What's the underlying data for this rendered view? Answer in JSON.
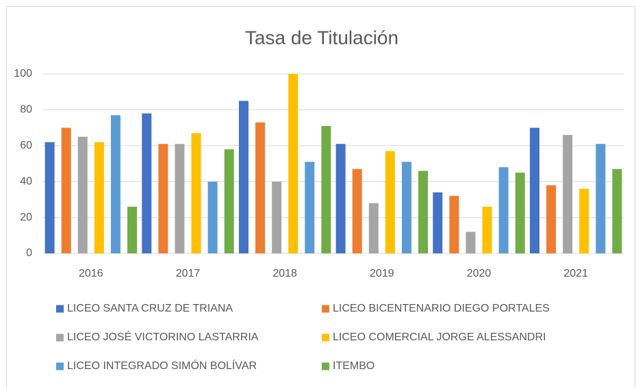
{
  "chart_data": {
    "type": "bar",
    "title": "Tasa de Titulación",
    "categories": [
      "2016",
      "2017",
      "2018",
      "2019",
      "2020",
      "2021"
    ],
    "series": [
      {
        "name": "LICEO SANTA CRUZ DE TRIANA",
        "color": "#4472c4",
        "values": [
          62,
          78,
          85,
          61,
          34,
          70
        ]
      },
      {
        "name": "LICEO BICENTENARIO DIEGO PORTALES",
        "color": "#ed7d31",
        "values": [
          70,
          61,
          73,
          47,
          32,
          38
        ]
      },
      {
        "name": "LICEO JOSÉ VICTORINO LASTARRIA",
        "color": "#a5a5a5",
        "values": [
          65,
          61,
          40,
          28,
          12,
          66
        ]
      },
      {
        "name": "LICEO COMERCIAL JORGE ALESSANDRI",
        "color": "#ffc000",
        "values": [
          62,
          67,
          100,
          57,
          26,
          36
        ]
      },
      {
        "name": "LICEO INTEGRADO SIMÓN BOLÍVAR",
        "color": "#5b9bd5",
        "values": [
          77,
          40,
          51,
          51,
          48,
          61
        ]
      },
      {
        "name": "ITEMBO",
        "color": "#70ad47",
        "values": [
          26,
          58,
          71,
          46,
          45,
          47
        ]
      }
    ],
    "ylim": [
      0,
      100
    ],
    "yticks": [
      0,
      20,
      40,
      60,
      80,
      100
    ],
    "grid": true,
    "legend": "bottom"
  }
}
